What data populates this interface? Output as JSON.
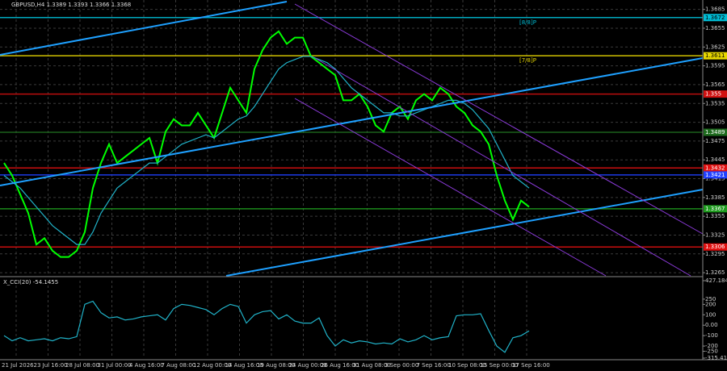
{
  "chart_data": [
    {
      "type": "line",
      "title": "GBPUSD,H4 1.3389 1.3393 1.3366 1.3368",
      "ylim": [
        1.326,
        1.37
      ],
      "yticks": [
        1.3685,
        1.3655,
        1.3625,
        1.3595,
        1.3565,
        1.3535,
        1.3505,
        1.3475,
        1.3445,
        1.3415,
        1.3385,
        1.3355,
        1.3325,
        1.3295,
        1.3265
      ],
      "grid": true,
      "series": [
        {
          "color": "#00ff00",
          "values": [
            1.344,
            1.342,
            1.339,
            1.336,
            1.331,
            1.332,
            1.33,
            1.329,
            1.329,
            1.33,
            1.333,
            1.34,
            1.344,
            1.347,
            1.344,
            1.345,
            1.346,
            1.347,
            1.348,
            1.344,
            1.349,
            1.351,
            1.35,
            1.35,
            1.352,
            1.35,
            1.348,
            1.352,
            1.356,
            1.354,
            1.352,
            1.359,
            1.362,
            1.364,
            1.365,
            1.363,
            1.364,
            1.364,
            1.361,
            1.36,
            1.359,
            1.358,
            1.354,
            1.354,
            1.355,
            1.353,
            1.35,
            1.349,
            1.352,
            1.353,
            1.351,
            1.354,
            1.355,
            1.354,
            1.356,
            1.355,
            1.353,
            1.352,
            1.35,
            1.349,
            1.347,
            1.342,
            1.338,
            1.335,
            1.338,
            1.337
          ]
        },
        {
          "color": "#20b2c8",
          "values": [
            1.342,
            1.341,
            1.34,
            1.3385,
            1.337,
            1.3355,
            1.334,
            1.333,
            1.332,
            1.331,
            1.331,
            1.333,
            1.336,
            1.338,
            1.34,
            1.341,
            1.342,
            1.343,
            1.344,
            1.344,
            1.345,
            1.346,
            1.347,
            1.3475,
            1.348,
            1.3485,
            1.348,
            1.349,
            1.35,
            1.351,
            1.3515,
            1.353,
            1.355,
            1.357,
            1.359,
            1.36,
            1.3605,
            1.361,
            1.361,
            1.3605,
            1.36,
            1.359,
            1.3575,
            1.356,
            1.355,
            1.354,
            1.353,
            1.352,
            1.352,
            1.3515,
            1.3515,
            1.352,
            1.3525,
            1.353,
            1.3535,
            1.354,
            1.354,
            1.3535,
            1.3525,
            1.351,
            1.3495,
            1.347,
            1.3445,
            1.342,
            1.341,
            1.34
          ]
        }
      ],
      "levels": [
        {
          "value": 1.3672,
          "color": "#00bcd4",
          "tag": "[8/8]P"
        },
        {
          "value": 1.3611,
          "color": "#e6d600",
          "tag": "[7/8]P"
        },
        {
          "value": 1.355,
          "color": "#d01010"
        },
        {
          "value": 1.3489,
          "color": "#1e6b1e"
        },
        {
          "value": 1.3432,
          "color": "#e01010"
        },
        {
          "value": 1.3421,
          "color": "#2040ff"
        },
        {
          "value": 1.3367,
          "color": "#1e9a1e"
        },
        {
          "value": 1.3306,
          "color": "#e01010"
        }
      ]
    },
    {
      "type": "line",
      "title": "X_CCI(20) -54.1455",
      "ylim": [
        -315.4131,
        427.1846
      ],
      "yticks": [
        427.1846,
        250,
        200,
        100,
        {
          "value": 0,
          "label": "0.00"
        },
        -100,
        -200,
        -250,
        -315.4131
      ],
      "series": [
        {
          "color": "#20b2c8",
          "values": [
            -100,
            -150,
            -120,
            -150,
            -140,
            -130,
            -150,
            -120,
            -130,
            -110,
            200,
            230,
            120,
            70,
            80,
            50,
            60,
            80,
            90,
            100,
            50,
            160,
            200,
            190,
            170,
            150,
            100,
            160,
            200,
            180,
            20,
            100,
            130,
            140,
            60,
            100,
            40,
            20,
            20,
            70,
            -100,
            -200,
            -140,
            -170,
            -150,
            -160,
            -180,
            -170,
            -180,
            -130,
            -160,
            -140,
            -100,
            -140,
            -120,
            -110,
            90,
            100,
            100,
            110,
            -50,
            -200,
            -260,
            -120,
            -100,
            -54
          ]
        }
      ],
      "x_labels": [
        "21 Jul 2026",
        "23 Jul 16:00",
        "28 Jul 08:00",
        "31 Jul 00:00",
        "4 Aug 16:00",
        "7 Aug 08:00",
        "12 Aug 00:00",
        "14 Aug 16:00",
        "19 Aug 08:00",
        "24 Aug 00:00",
        "26 Aug 16:00",
        "31 Aug 08:00",
        "3 Sep 00:00",
        "7 Sep 16:00",
        "10 Sep 08:00",
        "15 Sep 00:00",
        "17 Sep 16:00"
      ]
    }
  ]
}
